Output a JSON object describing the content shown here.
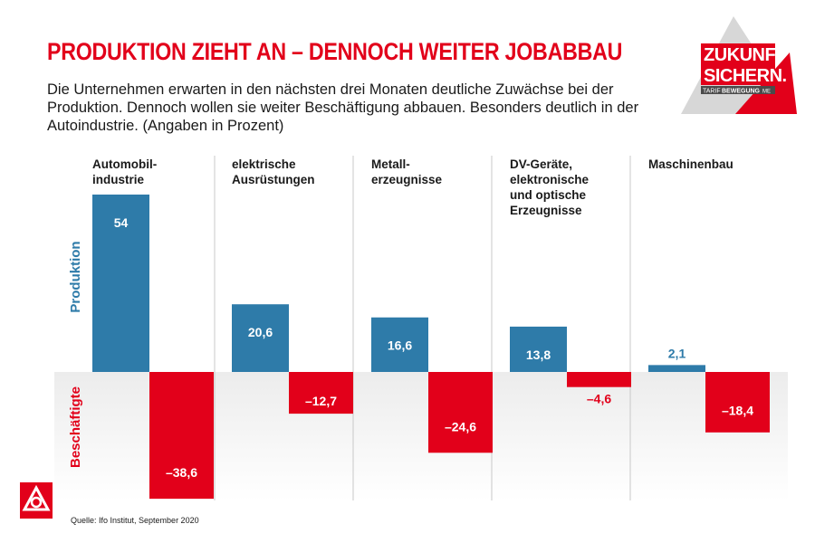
{
  "header": {
    "title": "PRODUKTION ZIEHT AN – DENNOCH WEITER JOBABBAU",
    "subtitle": "Die Unternehmen erwarten in den nächsten drei Monaten deutliche Zuwächse bei der Produktion. Dennoch wollen sie weiter Beschäftigung abbauen. Besonders deutlich in der Autoindustrie. (Angaben in Prozent)"
  },
  "logo": {
    "line1": "ZUKUNFT",
    "line2": "SICHERN.",
    "tag_left": "TARIF",
    "tag_right": "BEWEGUNG",
    "tag_small": "ME"
  },
  "footer": {
    "source": "Quelle: Ifo Institut, September 2020"
  },
  "colors": {
    "production": "#2e7ba9",
    "employment": "#e2001a",
    "title": "#e2001a",
    "divider": "#c8c8c8"
  },
  "chart_data": {
    "type": "bar",
    "categories": [
      "Automobil-\nindustrie",
      "elektrische\nAusrüstungen",
      "Metall-\nerzeugnisse",
      "DV-Geräte,\nelektronische\nund optische\nErzeugnisse",
      "Maschinenbau"
    ],
    "series": [
      {
        "name": "Produktion",
        "values": [
          54,
          20.6,
          16.6,
          13.8,
          2.1
        ],
        "labels": [
          "54",
          "20,6",
          "16,6",
          "13,8",
          "2,1"
        ]
      },
      {
        "name": "Beschäftigte",
        "values": [
          -38.6,
          -12.7,
          -24.6,
          -4.6,
          -18.4
        ],
        "labels": [
          "–38,6",
          "–12,7",
          "–24,6",
          "–4,6",
          "–18,4"
        ]
      }
    ],
    "ylim": [
      -38.6,
      54
    ],
    "grid": false,
    "legend": "left-vertical"
  }
}
